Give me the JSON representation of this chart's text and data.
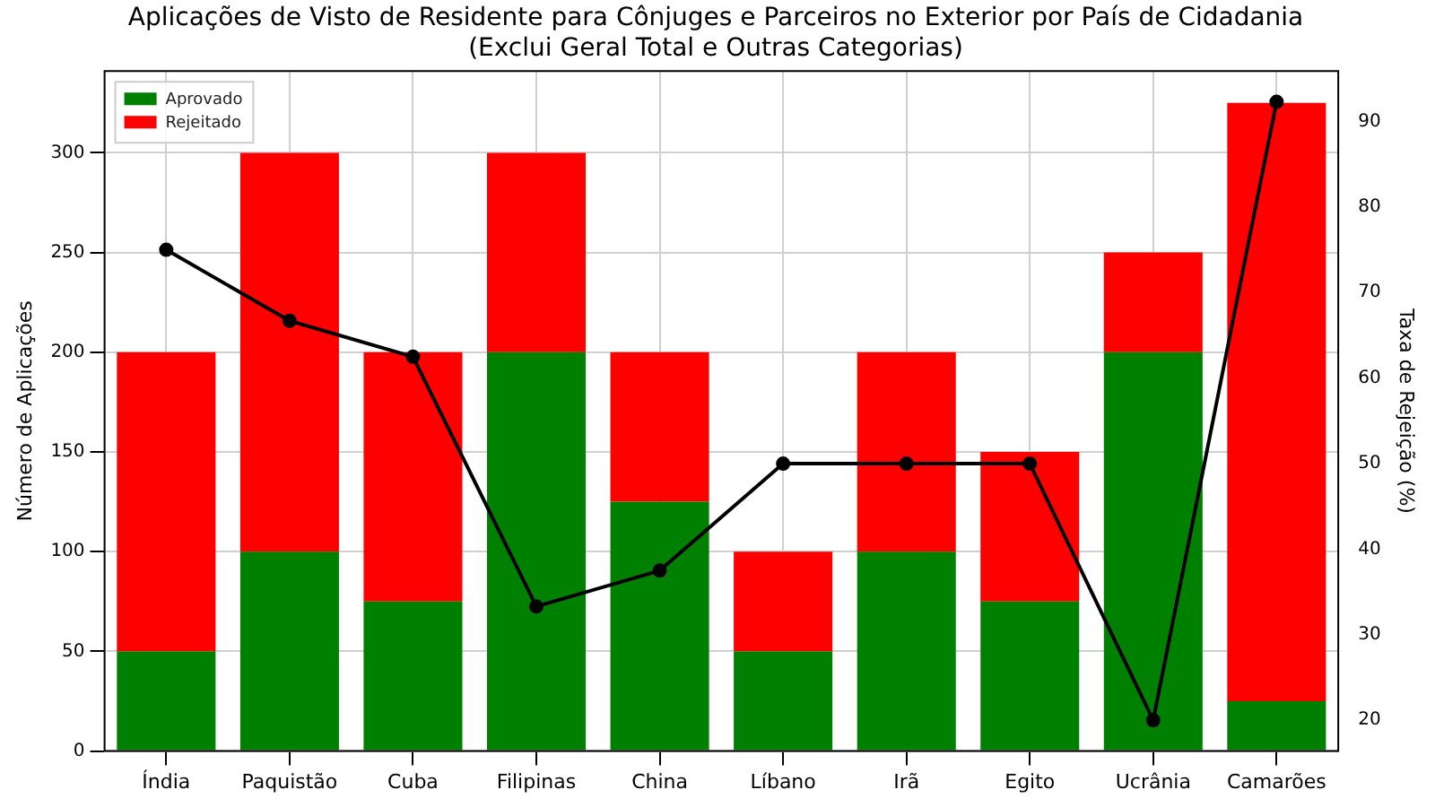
{
  "chart_data": {
    "type": "bar",
    "title": "Aplicações de Visto de Residente para Cônjuges e Parceiros no Exterior por País de Cidadania\n(Exclui Geral Total e Outras Categorias)",
    "ylabel": "Número de Aplicações",
    "y2label": "Taxa de Rejeição (%)",
    "categories": [
      "Índia",
      "Paquistão",
      "Cuba",
      "Filipinas",
      "China",
      "Líbano",
      "Irã",
      "Egito",
      "Ucrânia",
      "Camarões"
    ],
    "stacked": true,
    "series": [
      {
        "name": "Aprovado",
        "color": "#008000",
        "values": [
          50,
          100,
          75,
          200,
          125,
          50,
          100,
          75,
          200,
          25
        ]
      },
      {
        "name": "Rejeitado",
        "color": "#ff0000",
        "values": [
          150,
          200,
          125,
          100,
          75,
          50,
          100,
          75,
          50,
          300
        ]
      },
      {
        "type": "line",
        "axis": "y2",
        "color": "#000000",
        "marker": "circle",
        "values": [
          75,
          66.7,
          62.5,
          33.3,
          37.5,
          50,
          50,
          50,
          20,
          92.3
        ]
      }
    ],
    "ylim": [
      0,
      341
    ],
    "yticks": [
      0,
      50,
      100,
      150,
      200,
      250,
      300
    ],
    "y2lim": [
      16.4,
      95.9
    ],
    "y2ticks": [
      20,
      30,
      40,
      50,
      60,
      70,
      80,
      90
    ],
    "grid": true,
    "legend": "top left"
  }
}
